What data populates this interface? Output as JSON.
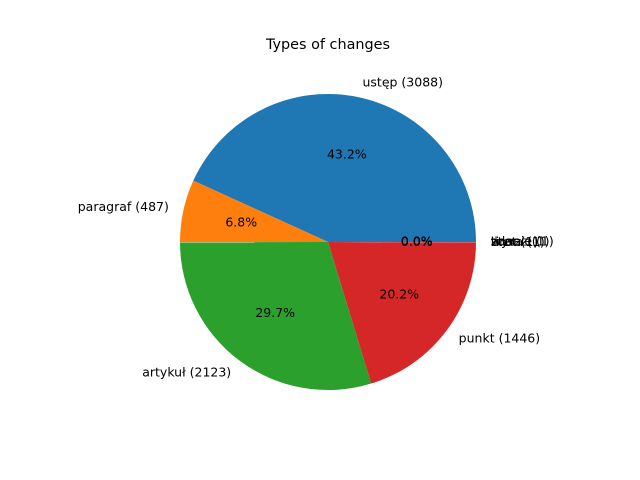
{
  "chart_data": {
    "type": "pie",
    "title": "Types of changes",
    "slices": [
      {
        "label": "ustęp (3088)",
        "value": 3088,
        "percent_label": "43.2%",
        "color": "#1f77b4"
      },
      {
        "label": "paragraf (487)",
        "value": 487,
        "percent_label": "6.8%",
        "color": "#ff7f0e"
      },
      {
        "label": "artykuł (2123)",
        "value": 2123,
        "percent_label": "29.7%",
        "color": "#2ca02c"
      },
      {
        "label": "punkt (1446)",
        "value": 1446,
        "percent_label": "20.2%",
        "color": "#d62728"
      },
      {
        "label": "litera (1)",
        "value": 1,
        "percent_label": "0.0%",
        "color": "#9467bd"
      },
      {
        "label": "tiret (1)",
        "value": 1,
        "percent_label": "0.0%",
        "color": "#8c564b"
      },
      {
        "label": "zdanie (1)",
        "value": 1,
        "percent_label": "0.0%",
        "color": "#e377c2"
      },
      {
        "label": "wyraz (1)",
        "value": 1,
        "percent_label": "0.0%",
        "color": "#7f7f7f"
      }
    ],
    "start_angle_deg": 0,
    "direction": "counterclockwise",
    "legend": "none"
  }
}
